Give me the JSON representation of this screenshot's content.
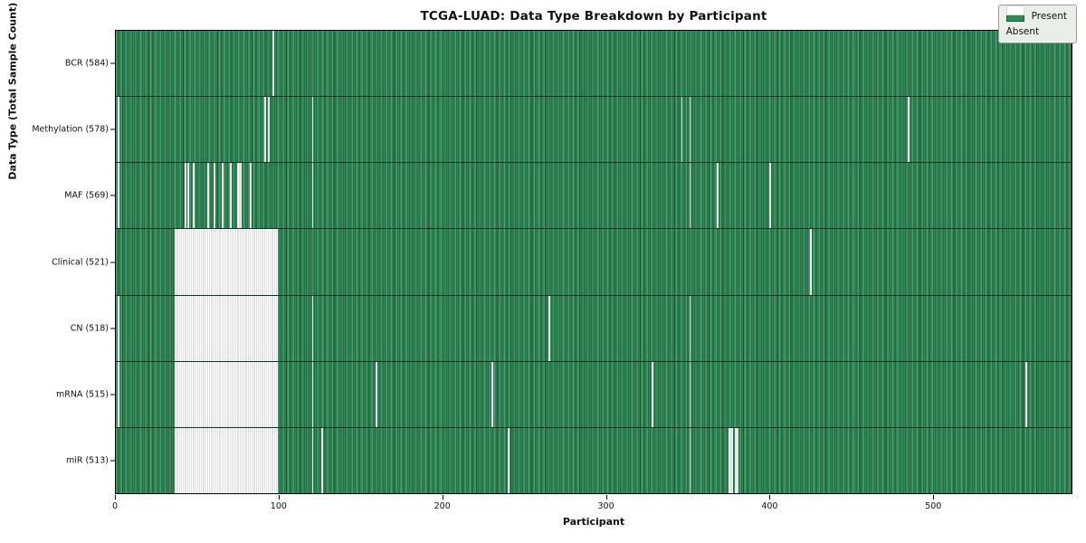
{
  "title": "TCGA-LUAD: Data Type Breakdown by Participant",
  "legend": {
    "present_label": "Present",
    "absent_label": "Absent"
  },
  "chart_data": {
    "type": "heatmap",
    "title": "TCGA-LUAD: Data Type Breakdown by Participant",
    "xlabel": "Participant",
    "ylabel": "Data Type (Total Sample Count)",
    "legend_position": "upper right",
    "grid": false,
    "n_participants": 585,
    "x_ticks": [
      0,
      100,
      200,
      300,
      400,
      500
    ],
    "colors": {
      "present": "#2e8b57",
      "absent": "#ffffff",
      "cell_edge": "#1d5c39",
      "row_separator": "#000000"
    },
    "value_encoding": {
      "present": 1,
      "absent": 0
    },
    "rows": [
      {
        "label": "BCR",
        "count": 584,
        "tick_text": "BCR (584)",
        "absent_ranges": [
          [
            96,
            1
          ]
        ]
      },
      {
        "label": "Methylation",
        "count": 578,
        "tick_text": "Methylation (578)",
        "absent_ranges": [
          [
            1,
            1
          ],
          [
            91,
            1
          ],
          [
            93,
            1
          ],
          [
            120,
            1
          ],
          [
            346,
            1
          ],
          [
            351,
            1
          ],
          [
            485,
            1
          ]
        ]
      },
      {
        "label": "MAF",
        "count": 569,
        "tick_text": "MAF (569)",
        "absent_ranges": [
          [
            1,
            1
          ],
          [
            42,
            1
          ],
          [
            44,
            1
          ],
          [
            47,
            1
          ],
          [
            56,
            1
          ],
          [
            60,
            1
          ],
          [
            65,
            1
          ],
          [
            70,
            1
          ],
          [
            74,
            3
          ],
          [
            82,
            1
          ],
          [
            120,
            1
          ],
          [
            351,
            1
          ],
          [
            368,
            1
          ],
          [
            400,
            1
          ]
        ]
      },
      {
        "label": "Clinical",
        "count": 521,
        "tick_text": "Clinical (521)",
        "absent_ranges": [
          [
            36,
            63
          ],
          [
            425,
            1
          ]
        ]
      },
      {
        "label": "CN",
        "count": 518,
        "tick_text": "CN (518)",
        "absent_ranges": [
          [
            1,
            1
          ],
          [
            36,
            63
          ],
          [
            120,
            1
          ],
          [
            265,
            1
          ],
          [
            351,
            1
          ]
        ]
      },
      {
        "label": "mRNA",
        "count": 515,
        "tick_text": "mRNA (515)",
        "absent_ranges": [
          [
            1,
            1
          ],
          [
            36,
            63
          ],
          [
            120,
            1
          ],
          [
            159,
            1
          ],
          [
            230,
            1
          ],
          [
            328,
            1
          ],
          [
            351,
            1
          ],
          [
            557,
            1
          ]
        ]
      },
      {
        "label": "miR",
        "count": 513,
        "tick_text": "miR (513)",
        "absent_ranges": [
          [
            36,
            63
          ],
          [
            120,
            1
          ],
          [
            126,
            1
          ],
          [
            240,
            1
          ],
          [
            351,
            1
          ],
          [
            375,
            3
          ],
          [
            379,
            2
          ]
        ]
      }
    ]
  }
}
